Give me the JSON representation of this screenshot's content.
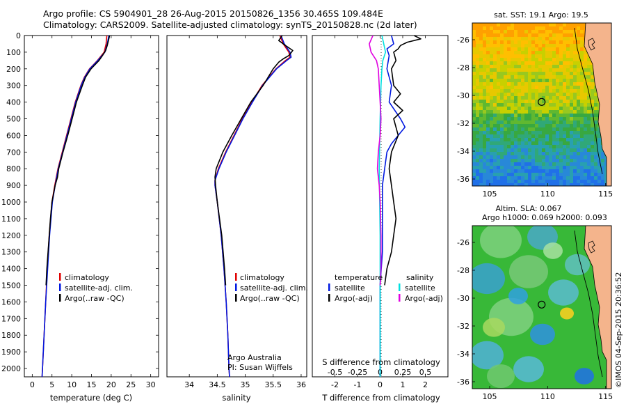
{
  "header": {
    "line1": "Argo profile: CS 5904901_28 26-Aug-2015 20150826_1356 30.465S 109.484E",
    "line2": "Climatology: CARS2009. Satellite-adjusted climatology: synTS_20150828.nc (2d later)"
  },
  "colors": {
    "climatology": "#e00000",
    "satellite": "#0018e0",
    "argo": "#000000",
    "satellite_salinity": "#00e0e0",
    "argo_salinity": "#e000e0",
    "land": "#f4b48c"
  },
  "chart_data": [
    {
      "type": "line",
      "xlabel": "temperature (deg C)",
      "xlim": [
        -2,
        32
      ],
      "xticks": [
        "0",
        "5",
        "10",
        "15",
        "20",
        "25",
        "30"
      ],
      "ylim": [
        0,
        2050
      ],
      "yticks": [
        "0",
        "100",
        "200",
        "300",
        "400",
        "500",
        "600",
        "700",
        "800",
        "900",
        "1000",
        "1100",
        "1200",
        "1300",
        "1400",
        "1500",
        "1600",
        "1700",
        "1800",
        "1900",
        "2000"
      ],
      "legend": [
        "climatology",
        "satellite-adj. clim.",
        "Argo(..raw -QC)"
      ],
      "series": [
        {
          "name": "climatology",
          "color": "#e00000",
          "depth": [
            0,
            50,
            100,
            150,
            200,
            250,
            300,
            400,
            500,
            600,
            700,
            800,
            900,
            1000,
            1200,
            1400,
            1600,
            1800,
            2000,
            2050
          ],
          "values": [
            18.9,
            18.7,
            18.2,
            16.5,
            14.5,
            13.2,
            12.3,
            10.9,
            9.8,
            8.7,
            7.6,
            6.5,
            5.7,
            5.0,
            4.3,
            3.8,
            3.4,
            3.0,
            2.6,
            2.5
          ]
        },
        {
          "name": "satellite-adj. clim.",
          "color": "#0018e0",
          "depth": [
            0,
            50,
            100,
            150,
            200,
            250,
            300,
            400,
            500,
            600,
            700,
            800,
            900,
            1000,
            1200,
            1400,
            1600,
            1800,
            2000,
            2050
          ],
          "values": [
            19.4,
            19.0,
            18.4,
            16.6,
            14.6,
            13.3,
            12.4,
            11.0,
            9.9,
            8.8,
            7.7,
            6.6,
            5.8,
            5.1,
            4.4,
            3.9,
            3.4,
            3.0,
            2.6,
            2.5
          ]
        },
        {
          "name": "Argo(..raw -QC)",
          "color": "#000000",
          "depth": [
            0,
            30,
            60,
            90,
            120,
            150,
            200,
            250,
            300,
            400,
            500,
            600,
            700,
            800,
            850,
            900,
            1000,
            1100,
            1200,
            1300,
            1400,
            1500
          ],
          "values": [
            19.6,
            19.3,
            19.0,
            18.6,
            17.8,
            16.9,
            14.9,
            13.5,
            12.7,
            11.2,
            10.1,
            9.0,
            7.8,
            6.7,
            6.4,
            5.8,
            5.0,
            4.6,
            4.3,
            4.0,
            3.7,
            3.5
          ]
        }
      ]
    },
    {
      "type": "line",
      "xlabel": "salinity",
      "xlim": [
        33.6,
        36.1
      ],
      "xticks": [
        "34",
        "34.5",
        "35",
        "35.5",
        "36"
      ],
      "ylim": [
        0,
        2050
      ],
      "legend": [
        "climatology",
        "satellite-adj. clim.",
        "Argo(..raw -QC)"
      ],
      "annotation": [
        "Argo Australia",
        "PI: Susan Wijffels"
      ],
      "series": [
        {
          "name": "climatology",
          "color": "#e00000",
          "depth": [
            0,
            50,
            100,
            130,
            150,
            200,
            300,
            400,
            500,
            600,
            700,
            800,
            870,
            900,
            1000,
            1200,
            1400,
            1600,
            1800,
            2000,
            2050
          ],
          "values": [
            35.62,
            35.68,
            35.78,
            35.8,
            35.72,
            35.55,
            35.3,
            35.12,
            34.95,
            34.8,
            34.65,
            34.52,
            34.46,
            34.46,
            34.5,
            34.57,
            34.62,
            34.66,
            34.69,
            34.71,
            34.72
          ]
        },
        {
          "name": "satellite-adj. clim.",
          "color": "#0018e0",
          "depth": [
            0,
            50,
            100,
            130,
            150,
            200,
            300,
            400,
            500,
            600,
            700,
            800,
            870,
            900,
            1000,
            1200,
            1400,
            1600,
            1800,
            2000,
            2050
          ],
          "values": [
            35.64,
            35.7,
            35.8,
            35.82,
            35.74,
            35.56,
            35.31,
            35.13,
            34.96,
            34.81,
            34.66,
            34.53,
            34.46,
            34.46,
            34.5,
            34.57,
            34.62,
            34.66,
            34.69,
            34.71,
            34.72
          ]
        },
        {
          "name": "Argo(..raw -QC)",
          "color": "#000000",
          "depth": [
            0,
            30,
            60,
            90,
            120,
            140,
            160,
            200,
            300,
            400,
            500,
            600,
            700,
            800,
            850,
            900,
            1000,
            1200,
            1400,
            1500
          ],
          "values": [
            35.66,
            35.6,
            35.72,
            35.85,
            35.78,
            35.68,
            35.6,
            35.5,
            35.32,
            35.1,
            34.93,
            34.76,
            34.6,
            34.48,
            34.46,
            34.47,
            34.5,
            34.58,
            34.63,
            34.65
          ]
        }
      ]
    },
    {
      "type": "line",
      "xlabel_top": "S difference from climatology",
      "xlabel": "T difference from climatology",
      "xlim": [
        -3,
        3
      ],
      "xticks_top": [
        "-0.5",
        "-0.25",
        "0",
        "0.25",
        "0.5"
      ],
      "xticks": [
        "-2",
        "-1",
        "0",
        "1",
        "2"
      ],
      "ylim": [
        0,
        2050
      ],
      "legend_temperature": {
        "title": "temperature",
        "items": [
          "satellite",
          "Argo(-adj)"
        ]
      },
      "legend_salinity": {
        "title": "salinity",
        "items": [
          "satellite",
          "Argo(-adj)"
        ]
      },
      "series": [
        {
          "name": "temperature satellite",
          "color": "#0018e0",
          "depth": [
            0,
            50,
            80,
            120,
            200,
            300,
            400,
            500,
            550,
            600,
            650,
            700,
            800,
            900,
            1000,
            1100,
            1300,
            1500,
            2000,
            2050
          ],
          "values": [
            0.5,
            0.6,
            0.3,
            0.4,
            0.3,
            0.5,
            0.4,
            0.9,
            1.1,
            0.8,
            0.5,
            0.3,
            0.2,
            0.1,
            0.1,
            0.1,
            0.1,
            0.0,
            0.0,
            0.0
          ]
        },
        {
          "name": "temperature Argo(-adj)",
          "color": "#000000",
          "depth": [
            0,
            20,
            40,
            60,
            80,
            100,
            150,
            200,
            300,
            350,
            400,
            450,
            500,
            600,
            700,
            800,
            900,
            1000,
            1100,
            1200,
            1300,
            1400,
            1500
          ],
          "values": [
            1.5,
            1.8,
            1.2,
            0.9,
            0.8,
            0.6,
            0.7,
            0.5,
            0.6,
            0.9,
            0.6,
            1.0,
            0.6,
            0.8,
            0.5,
            0.4,
            0.5,
            0.6,
            0.7,
            0.6,
            0.5,
            0.3,
            0.2
          ]
        },
        {
          "name": "salinity satellite",
          "color": "#00e0e0",
          "depth": [
            0,
            50,
            100,
            150,
            200,
            300,
            500,
            800,
            1200,
            1600,
            2000,
            2050
          ],
          "values": [
            0.02,
            0.04,
            0.06,
            0.03,
            0.02,
            0.01,
            0.0,
            -0.01,
            0.0,
            0.0,
            0.0,
            0.0
          ]
        },
        {
          "name": "salinity Argo(-adj)",
          "color": "#e000e0",
          "depth": [
            0,
            50,
            100,
            150,
            200,
            300,
            400,
            500,
            600,
            700,
            800,
            900,
            1000,
            1200,
            1400,
            1500
          ],
          "values": [
            -0.08,
            -0.12,
            -0.1,
            -0.04,
            -0.02,
            -0.01,
            0.0,
            0.01,
            0.0,
            -0.02,
            -0.03,
            -0.01,
            0.0,
            0.01,
            0.01,
            0.0
          ]
        }
      ]
    },
    {
      "type": "heatmap",
      "title": "sat. SST: 19.1  Argo: 19.5",
      "xticks": [
        "105",
        "110",
        "115"
      ],
      "yticks": [
        "-26",
        "-28",
        "-30",
        "-32",
        "-34",
        "-36"
      ],
      "xlim": [
        103.5,
        115.5
      ],
      "ylim": [
        -36.5,
        -24.8
      ],
      "marker": {
        "lon": 109.484,
        "lat": -30.465
      }
    },
    {
      "type": "heatmap",
      "title_line1": "Altim. SLA: 0.067",
      "title_line2": "Argo h1000: 0.069  h2000: 0.093",
      "xticks": [
        "105",
        "110",
        "115"
      ],
      "yticks": [
        "-26",
        "-28",
        "-30",
        "-32",
        "-34",
        "-36"
      ],
      "xlim": [
        103.5,
        115.5
      ],
      "ylim": [
        -36.5,
        -24.8
      ],
      "marker": {
        "lon": 109.484,
        "lat": -30.465
      }
    }
  ],
  "footer": {
    "credit": "©IMOS 04-Sep-2015 20:36:52"
  }
}
